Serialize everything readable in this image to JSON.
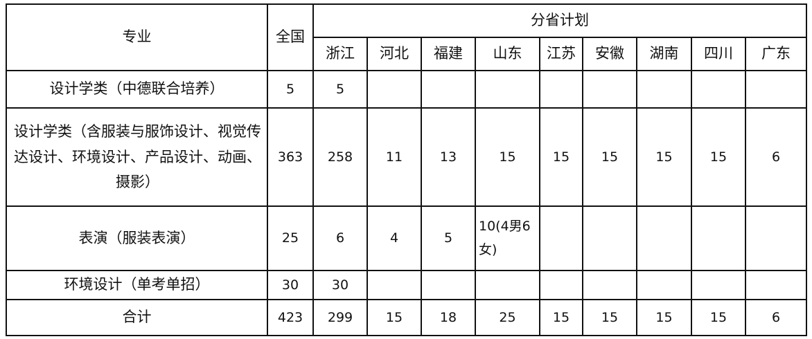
{
  "header": {
    "major": "专业",
    "national": "全国",
    "province_plan": "分省计划",
    "provinces": [
      "浙江",
      "河北",
      "福建",
      "山东",
      "江苏",
      "安徽",
      "湖南",
      "四川",
      "广东"
    ]
  },
  "rows": [
    {
      "major": "设计学类（中德联合培养）",
      "national": "5",
      "values": [
        "5",
        "",
        "",
        "",
        "",
        "",
        "",
        "",
        ""
      ]
    },
    {
      "major": "设计学类（含服装与服饰设计、视觉传达设计、环境设计、产品设计、动画、摄影）",
      "national": "363",
      "values": [
        "258",
        "11",
        "13",
        "15",
        "15",
        "15",
        "15",
        "15",
        "6"
      ]
    },
    {
      "major": "表演（服装表演）",
      "national": "25",
      "values": [
        "6",
        "4",
        "5",
        "10(4男6女)",
        "",
        "",
        "",
        "",
        ""
      ]
    },
    {
      "major": "环境设计（单考单招）",
      "national": "30",
      "values": [
        "30",
        "",
        "",
        "",
        "",
        "",
        "",
        "",
        ""
      ]
    },
    {
      "major": "合计",
      "national": "423",
      "values": [
        "299",
        "15",
        "18",
        "25",
        "15",
        "15",
        "15",
        "15",
        "6"
      ]
    }
  ]
}
